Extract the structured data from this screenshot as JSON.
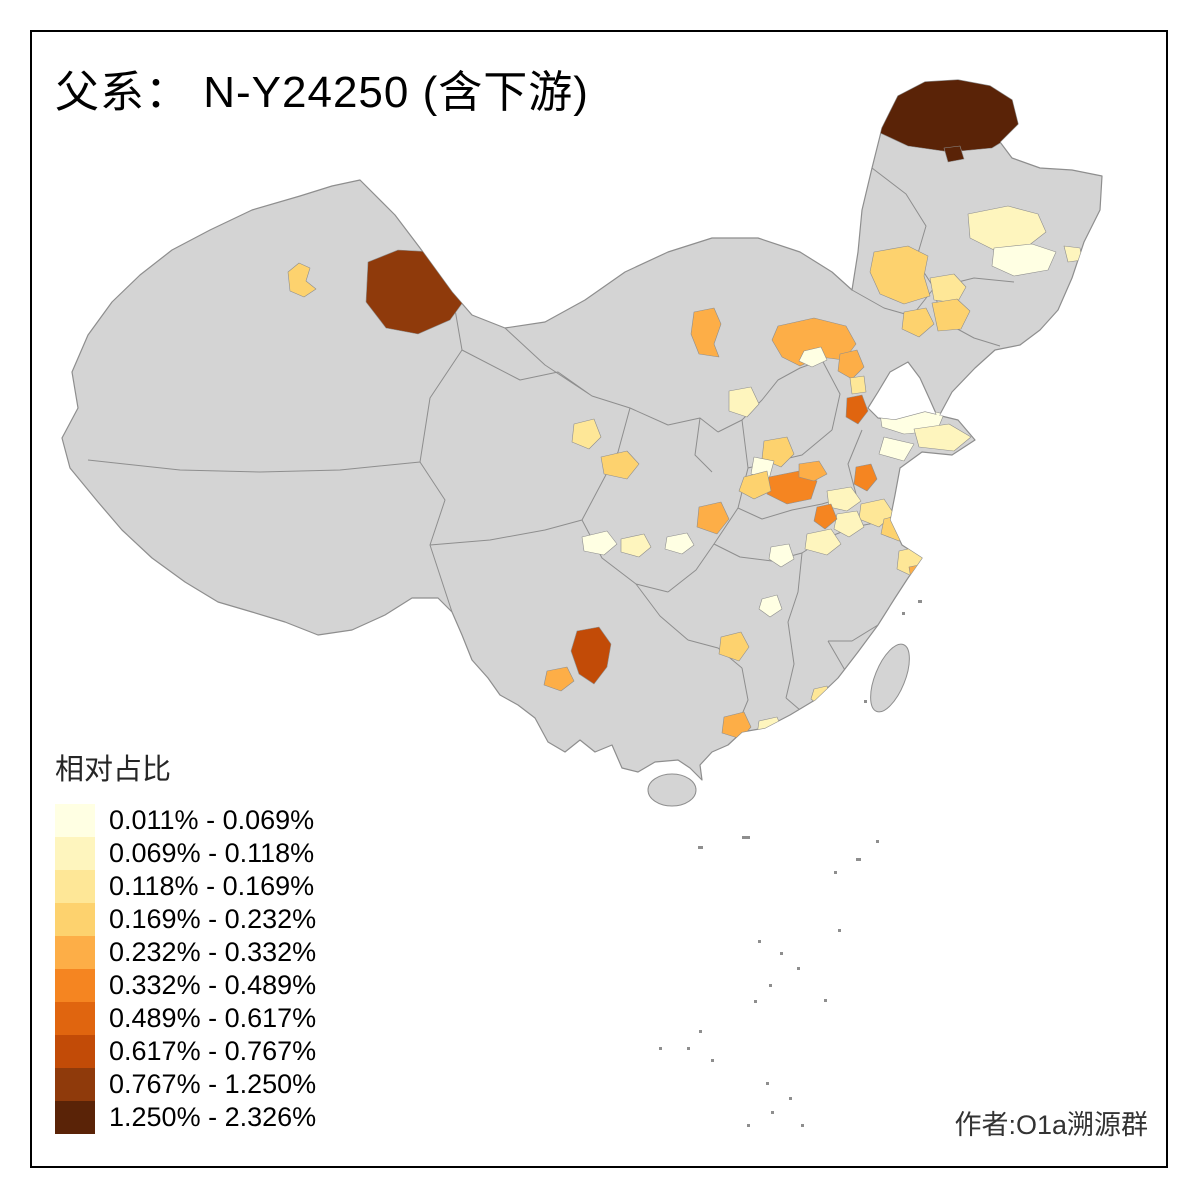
{
  "header": {
    "title": "父系： N-Y24250 (含下游)"
  },
  "legend": {
    "title": "相对占比",
    "classes": [
      {
        "label": "0.011% - 0.069%",
        "color": "#FFFFE3"
      },
      {
        "label": "0.069% - 0.118%",
        "color": "#FEF5BE"
      },
      {
        "label": "0.118% - 0.169%",
        "color": "#FEE797"
      },
      {
        "label": "0.169% - 0.232%",
        "color": "#FDD26E"
      },
      {
        "label": "0.232% - 0.332%",
        "color": "#FDAE47"
      },
      {
        "label": "0.332% - 0.489%",
        "color": "#F58521"
      },
      {
        "label": "0.489% - 0.617%",
        "color": "#E0650F"
      },
      {
        "label": "0.617% - 0.767%",
        "color": "#C24B07"
      },
      {
        "label": "0.767% - 1.250%",
        "color": "#8F3A0B"
      },
      {
        "label": "1.250% - 2.326%",
        "color": "#5A2307"
      }
    ]
  },
  "footer": {
    "credit": "作者:O1a溯源群"
  },
  "map": {
    "no_data_color": "#D4D4D4",
    "border_color": "#8E8E8E",
    "frame_color": "#000000",
    "regions": {
      "r1": 10,
      "r2": 10,
      "r3": 9,
      "r4": 4,
      "r5": 2,
      "r6": 1,
      "r7": 2,
      "r8": 4,
      "r9": 3,
      "r10": 4,
      "r11": 4,
      "r12": 5,
      "r13": 5,
      "r14": 1,
      "r15": 5,
      "r16": 3,
      "r17": 7,
      "r18": 1,
      "r19": 2,
      "r20": 1,
      "r21": 6,
      "r22": 2,
      "r23": 3,
      "r24": 4,
      "r25": 2,
      "r26": 2,
      "r27": 4,
      "r28": 1,
      "r29": 3,
      "r30": 4,
      "r31": 6,
      "r32": 4,
      "r33": 5,
      "r34": 6,
      "r35": 5,
      "r36": 1,
      "r37": 2,
      "r38": 1,
      "r39": 2,
      "r40": 1,
      "r41": 3,
      "r42": 5,
      "r43": 8,
      "r44": 5,
      "r45": 4,
      "r46": 3,
      "r47": 5,
      "r48": 2,
      "r49": 1
    }
  }
}
